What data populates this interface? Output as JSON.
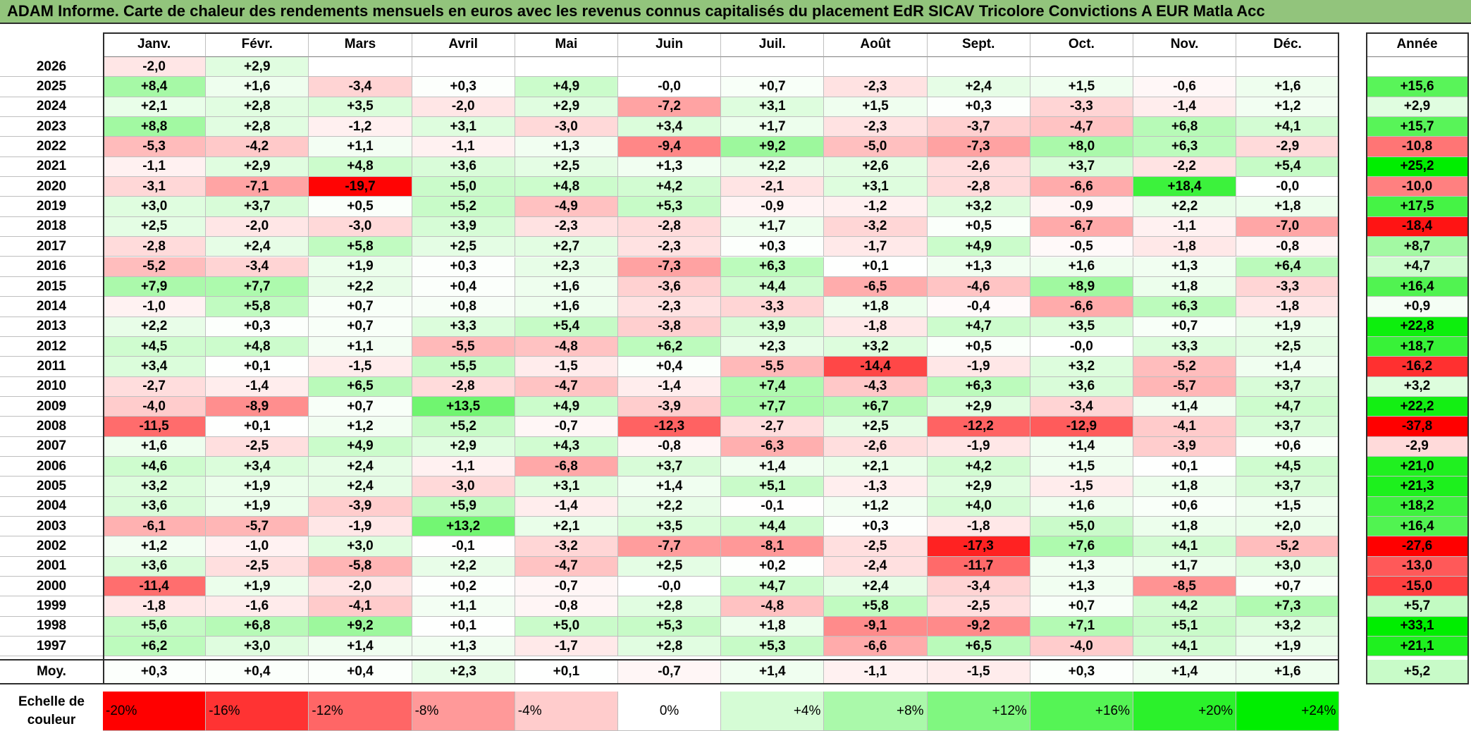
{
  "title": "ADAM Informe. Carte de chaleur des rendements mensuels en euros avec les revenus connus capitalisés du placement EdR SICAV Tricolore Convictions A EUR Matla Acc",
  "chart_data": {
    "type": "heatmap",
    "title": "ADAM Informe. Carte de chaleur des rendements mensuels en euros avec les revenus connus capitalisés du placement EdR SICAV Tricolore Convictions A EUR Matla Acc",
    "columns": [
      "Janv.",
      "Févr.",
      "Mars",
      "Avril",
      "Mai",
      "Juin",
      "Juil.",
      "Août",
      "Sept.",
      "Oct.",
      "Nov.",
      "Déc."
    ],
    "year_header": "Année",
    "rows": [
      {
        "year": "2026",
        "months": [
          "-2,0",
          "+2,9",
          "",
          "",
          "",
          "",
          "",
          "",
          "",
          "",
          "",
          ""
        ],
        "annual": ""
      },
      {
        "year": "2025",
        "months": [
          "+8,4",
          "+1,6",
          "-3,4",
          "+0,3",
          "+4,9",
          "-0,0",
          "+0,7",
          "-2,3",
          "+2,4",
          "+1,5",
          "-0,6",
          "+1,6"
        ],
        "annual": "+15,6"
      },
      {
        "year": "2024",
        "months": [
          "+2,1",
          "+2,8",
          "+3,5",
          "-2,0",
          "+2,9",
          "-7,2",
          "+3,1",
          "+1,5",
          "+0,3",
          "-3,3",
          "-1,4",
          "+1,2"
        ],
        "annual": "+2,9"
      },
      {
        "year": "2023",
        "months": [
          "+8,8",
          "+2,8",
          "-1,2",
          "+3,1",
          "-3,0",
          "+3,4",
          "+1,7",
          "-2,3",
          "-3,7",
          "-4,7",
          "+6,8",
          "+4,1"
        ],
        "annual": "+15,7"
      },
      {
        "year": "2022",
        "months": [
          "-5,3",
          "-4,2",
          "+1,1",
          "-1,1",
          "+1,3",
          "-9,4",
          "+9,2",
          "-5,0",
          "-7,3",
          "+8,0",
          "+6,3",
          "-2,9"
        ],
        "annual": "-10,8"
      },
      {
        "year": "2021",
        "months": [
          "-1,1",
          "+2,9",
          "+4,8",
          "+3,6",
          "+2,5",
          "+1,3",
          "+2,2",
          "+2,6",
          "-2,6",
          "+3,7",
          "-2,2",
          "+5,4"
        ],
        "annual": "+25,2"
      },
      {
        "year": "2020",
        "months": [
          "-3,1",
          "-7,1",
          "-19,7",
          "+5,0",
          "+4,8",
          "+4,2",
          "-2,1",
          "+3,1",
          "-2,8",
          "-6,6",
          "+18,4",
          "-0,0"
        ],
        "annual": "-10,0"
      },
      {
        "year": "2019",
        "months": [
          "+3,0",
          "+3,7",
          "+0,5",
          "+5,2",
          "-4,9",
          "+5,3",
          "-0,9",
          "-1,2",
          "+3,2",
          "-0,9",
          "+2,2",
          "+1,8"
        ],
        "annual": "+17,5"
      },
      {
        "year": "2018",
        "months": [
          "+2,5",
          "-2,0",
          "-3,0",
          "+3,9",
          "-2,3",
          "-2,8",
          "+1,7",
          "-3,2",
          "+0,5",
          "-6,7",
          "-1,1",
          "-7,0"
        ],
        "annual": "-18,4"
      },
      {
        "year": "2017",
        "months": [
          "-2,8",
          "+2,4",
          "+5,8",
          "+2,5",
          "+2,7",
          "-2,3",
          "+0,3",
          "-1,7",
          "+4,9",
          "-0,5",
          "-1,8",
          "-0,8"
        ],
        "annual": "+8,7"
      },
      {
        "year": "2016",
        "months": [
          "-5,2",
          "-3,4",
          "+1,9",
          "+0,3",
          "+2,3",
          "-7,3",
          "+6,3",
          "+0,1",
          "+1,3",
          "+1,6",
          "+1,3",
          "+6,4"
        ],
        "annual": "+4,7"
      },
      {
        "year": "2015",
        "months": [
          "+7,9",
          "+7,7",
          "+2,2",
          "+0,4",
          "+1,6",
          "-3,6",
          "+4,4",
          "-6,5",
          "-4,6",
          "+8,9",
          "+1,8",
          "-3,3"
        ],
        "annual": "+16,4"
      },
      {
        "year": "2014",
        "months": [
          "-1,0",
          "+5,8",
          "+0,7",
          "+0,8",
          "+1,6",
          "-2,3",
          "-3,3",
          "+1,8",
          "-0,4",
          "-6,6",
          "+6,3",
          "-1,8"
        ],
        "annual": "+0,9"
      },
      {
        "year": "2013",
        "months": [
          "+2,2",
          "+0,3",
          "+0,7",
          "+3,3",
          "+5,4",
          "-3,8",
          "+3,9",
          "-1,8",
          "+4,7",
          "+3,5",
          "+0,7",
          "+1,9"
        ],
        "annual": "+22,8"
      },
      {
        "year": "2012",
        "months": [
          "+4,5",
          "+4,8",
          "+1,1",
          "-5,5",
          "-4,8",
          "+6,2",
          "+2,3",
          "+3,2",
          "+0,5",
          "-0,0",
          "+3,3",
          "+2,5"
        ],
        "annual": "+18,7"
      },
      {
        "year": "2011",
        "months": [
          "+3,4",
          "+0,1",
          "-1,5",
          "+5,5",
          "-1,5",
          "+0,4",
          "-5,5",
          "-14,4",
          "-1,9",
          "+3,2",
          "-5,2",
          "+1,4"
        ],
        "annual": "-16,2"
      },
      {
        "year": "2010",
        "months": [
          "-2,7",
          "-1,4",
          "+6,5",
          "-2,8",
          "-4,7",
          "-1,4",
          "+7,4",
          "-4,3",
          "+6,3",
          "+3,6",
          "-5,7",
          "+3,7"
        ],
        "annual": "+3,2"
      },
      {
        "year": "2009",
        "months": [
          "-4,0",
          "-8,9",
          "+0,7",
          "+13,5",
          "+4,9",
          "-3,9",
          "+7,7",
          "+6,7",
          "+2,9",
          "-3,4",
          "+1,4",
          "+4,7"
        ],
        "annual": "+22,2"
      },
      {
        "year": "2008",
        "months": [
          "-11,5",
          "+0,1",
          "+1,2",
          "+5,2",
          "-0,7",
          "-12,3",
          "-2,7",
          "+2,5",
          "-12,2",
          "-12,9",
          "-4,1",
          "+3,7"
        ],
        "annual": "-37,8"
      },
      {
        "year": "2007",
        "months": [
          "+1,6",
          "-2,5",
          "+4,9",
          "+2,9",
          "+4,3",
          "-0,8",
          "-6,3",
          "-2,6",
          "-1,9",
          "+1,4",
          "-3,9",
          "+0,6"
        ],
        "annual": "-2,9"
      },
      {
        "year": "2006",
        "months": [
          "+4,6",
          "+3,4",
          "+2,4",
          "-1,1",
          "-6,8",
          "+3,7",
          "+1,4",
          "+2,1",
          "+4,2",
          "+1,5",
          "+0,1",
          "+4,5"
        ],
        "annual": "+21,0"
      },
      {
        "year": "2005",
        "months": [
          "+3,2",
          "+1,9",
          "+2,4",
          "-3,0",
          "+3,1",
          "+1,4",
          "+5,1",
          "-1,3",
          "+2,9",
          "-1,5",
          "+1,8",
          "+3,7"
        ],
        "annual": "+21,3"
      },
      {
        "year": "2004",
        "months": [
          "+3,6",
          "+1,9",
          "-3,9",
          "+5,9",
          "-1,4",
          "+2,2",
          "-0,1",
          "+1,2",
          "+4,0",
          "+1,6",
          "+0,6",
          "+1,5"
        ],
        "annual": "+18,2"
      },
      {
        "year": "2003",
        "months": [
          "-6,1",
          "-5,7",
          "-1,9",
          "+13,2",
          "+2,1",
          "+3,5",
          "+4,4",
          "+0,3",
          "-1,8",
          "+5,0",
          "+1,8",
          "+2,0"
        ],
        "annual": "+16,4"
      },
      {
        "year": "2002",
        "months": [
          "+1,2",
          "-1,0",
          "+3,0",
          "-0,1",
          "-3,2",
          "-7,7",
          "-8,1",
          "-2,5",
          "-17,3",
          "+7,6",
          "+4,1",
          "-5,2"
        ],
        "annual": "-27,6"
      },
      {
        "year": "2001",
        "months": [
          "+3,6",
          "-2,5",
          "-5,8",
          "+2,2",
          "-4,7",
          "+2,5",
          "+0,2",
          "-2,4",
          "-11,7",
          "+1,3",
          "+1,7",
          "+3,0"
        ],
        "annual": "-13,0"
      },
      {
        "year": "2000",
        "months": [
          "-11,4",
          "+1,9",
          "-2,0",
          "+0,2",
          "-0,7",
          "-0,0",
          "+4,7",
          "+2,4",
          "-3,4",
          "+1,3",
          "-8,5",
          "+0,7"
        ],
        "annual": "-15,0"
      },
      {
        "year": "1999",
        "months": [
          "-1,8",
          "-1,6",
          "-4,1",
          "+1,1",
          "-0,8",
          "+2,8",
          "-4,8",
          "+5,8",
          "-2,5",
          "+0,7",
          "+4,2",
          "+7,3"
        ],
        "annual": "+5,7"
      },
      {
        "year": "1998",
        "months": [
          "+5,6",
          "+6,8",
          "+9,2",
          "+0,1",
          "+5,0",
          "+5,3",
          "+1,8",
          "-9,1",
          "-9,2",
          "+7,1",
          "+5,1",
          "+3,2"
        ],
        "annual": "+33,1"
      },
      {
        "year": "1997",
        "months": [
          "+6,2",
          "+3,0",
          "+1,4",
          "+1,3",
          "-1,7",
          "+2,8",
          "+5,3",
          "-6,6",
          "+6,5",
          "-4,0",
          "+4,1",
          "+1,9"
        ],
        "annual": "+21,1"
      }
    ],
    "average": {
      "label": "Moy.",
      "months": [
        "+0,3",
        "+0,4",
        "+0,4",
        "+2,3",
        "+0,1",
        "-0,7",
        "+1,4",
        "-1,1",
        "-1,5",
        "+0,3",
        "+1,4",
        "+1,6"
      ],
      "annual": "+5,2"
    },
    "scale": {
      "label_line1": "Echelle de",
      "label_line2": "couleur",
      "steps": [
        {
          "text": "-20%",
          "value": -20
        },
        {
          "text": "-16%",
          "value": -16
        },
        {
          "text": "-12%",
          "value": -12
        },
        {
          "text": "-8%",
          "value": -8
        },
        {
          "text": "-4%",
          "value": -4
        },
        {
          "text": "0%",
          "value": 0
        },
        {
          "text": "+4%",
          "value": 4
        },
        {
          "text": "+8%",
          "value": 8
        },
        {
          "text": "+12%",
          "value": 12
        },
        {
          "text": "+16%",
          "value": 16
        },
        {
          "text": "+20%",
          "value": 20
        },
        {
          "text": "+24%",
          "value": 24
        }
      ]
    },
    "colors": {
      "neutral": "#ffffff",
      "negative_max": "#ff0000",
      "positive_max": "#00ee00",
      "title_bg": "#92c47c"
    }
  }
}
